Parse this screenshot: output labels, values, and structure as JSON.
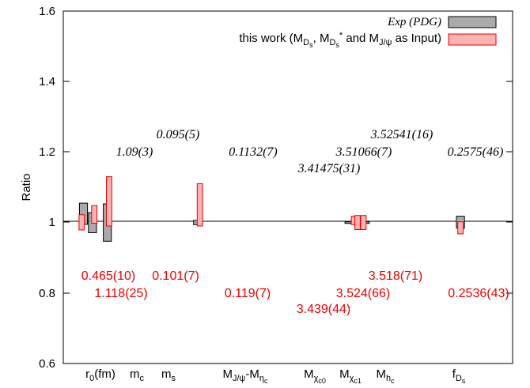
{
  "chart_data": {
    "type": "bar",
    "ylabel": "Ratio",
    "ylim": [
      0.6,
      1.6
    ],
    "yticks": [
      "0.6",
      "0.8",
      "1",
      "1.2",
      "1.4",
      "1.6"
    ],
    "reference_line": 1.0,
    "legend": {
      "placement": "top-right",
      "entries": [
        {
          "label": "Exp (PDG)",
          "color": "#aaaaaa",
          "stroke": "#000000"
        },
        {
          "label": "this work (M_Ds, M_Ds* and M_J/ψ as Input)",
          "color": "#f9b3b3",
          "stroke": "#ee0000"
        }
      ]
    },
    "categories": [
      {
        "id": "r0",
        "base": "r",
        "sub": "0",
        "suffix": "(fm)"
      },
      {
        "id": "mc",
        "base": "m",
        "sub": "c"
      },
      {
        "id": "ms",
        "base": "m",
        "sub": "s"
      },
      {
        "id": "jpsi_etac",
        "base": "M",
        "sub": "J/ψ",
        "mid": "-M",
        "sub2": "η",
        "subsub2": "c"
      },
      {
        "id": "chic0",
        "base": "M",
        "sub": "χ",
        "subsub": "c0"
      },
      {
        "id": "chic1",
        "base": "M",
        "sub": "χ",
        "subsub": "c1"
      },
      {
        "id": "hc",
        "base": "M",
        "sub": "h",
        "subsub": "c"
      },
      {
        "id": "fds",
        "base": "f",
        "sub": "D",
        "subsub": "s"
      }
    ],
    "series": [
      {
        "name": "Exp (PDG)",
        "ranges": [
          {
            "x": 0.225,
            "lo": 0.995,
            "hi": 1.055
          },
          {
            "x": 0.325,
            "lo": 0.971,
            "hi": 1.028
          },
          {
            "x": 0.49,
            "lo": 0.947,
            "hi": 1.053
          },
          {
            "x": 1.495,
            "lo": 0.994,
            "hi": 1.006
          },
          {
            "x": 3.18,
            "lo": 0.998,
            "hi": 1.002
          },
          {
            "x": 3.27,
            "lo": 0.998,
            "hi": 1.002
          },
          {
            "x": 3.36,
            "lo": 0.998,
            "hi": 1.002
          },
          {
            "x": 4.42,
            "lo": 0.984,
            "hi": 1.018
          }
        ],
        "values": [
          "",
          "1.09(3)",
          "0.095(5)",
          "0.1132(7)",
          "3.41475(31)",
          "3.51066(7)",
          "3.52541(16)",
          "0.2575(46)"
        ]
      },
      {
        "name": "this work",
        "ranges": [
          {
            "x": 0.205,
            "lo": 0.979,
            "hi": 1.022
          },
          {
            "x": 0.345,
            "lo": 0.998,
            "hi": 1.048
          },
          {
            "x": 0.51,
            "lo": 0.99,
            "hi": 1.13
          },
          {
            "x": 1.52,
            "lo": 0.99,
            "hi": 1.11
          },
          {
            "x": 3.235,
            "lo": 0.994,
            "hi": 1.018
          },
          {
            "x": 3.275,
            "lo": 0.98,
            "hi": 1.02
          },
          {
            "x": 3.34,
            "lo": 0.98,
            "hi": 1.02
          },
          {
            "x": 4.42,
            "lo": 0.968,
            "hi": 1.002
          }
        ],
        "values": [
          "0.465(10)",
          "1.118(25)",
          "0.101(7)",
          "0.119(7)",
          "3.439(44)",
          "3.524(66)",
          "3.518(71)",
          "0.2536(43)"
        ]
      }
    ]
  }
}
